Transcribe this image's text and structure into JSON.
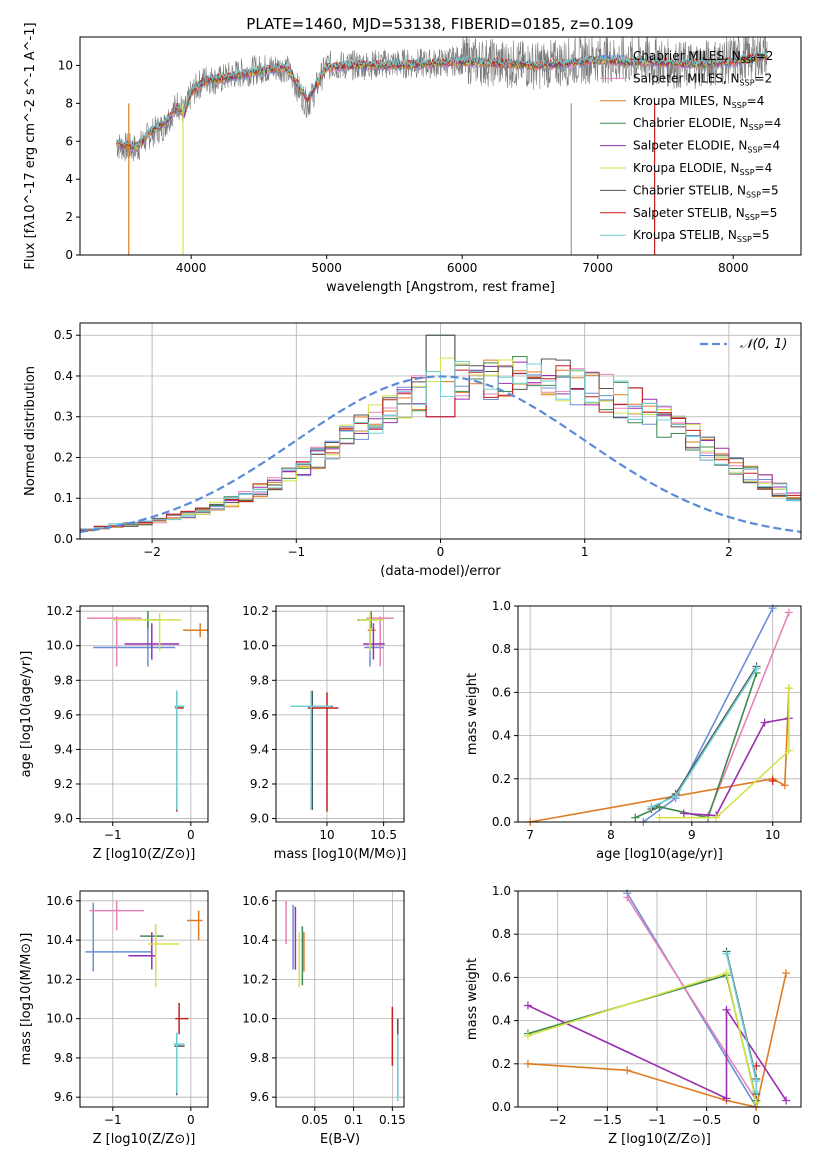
{
  "title": "PLATE=1460, MJD=53138, FIBERID=0185, z=0.109",
  "models": [
    {
      "name": "Chabrier MILES",
      "nssp": "2",
      "color": "#6a8fd8"
    },
    {
      "name": "Salpeter MILES",
      "nssp": "2",
      "color": "#e882b8"
    },
    {
      "name": "Kroupa MILES",
      "nssp": "4",
      "color": "#e07b22"
    },
    {
      "name": "Chabrier ELODIE",
      "nssp": "4",
      "color": "#3f8a4f"
    },
    {
      "name": "Salpeter ELODIE",
      "nssp": "4",
      "color": "#9a2fb0"
    },
    {
      "name": "Kroupa ELODIE",
      "nssp": "4",
      "color": "#d6e24a"
    },
    {
      "name": "Chabrier STELIB",
      "nssp": "5",
      "color": "#555555"
    },
    {
      "name": "Salpeter STELIB",
      "nssp": "5",
      "color": "#c41f1f"
    },
    {
      "name": "Kroupa STELIB",
      "nssp": "5",
      "color": "#6fd0d8"
    }
  ],
  "chart_data": [
    {
      "id": "spectrum",
      "type": "line",
      "xlabel": "wavelength [Angstrom, rest frame]",
      "ylabel": "Flux [f$_\\lambda$10$^{-17}$ erg cm$^{-2}$ s$^{-1}$ A$^{-1}$]",
      "xlim": [
        3180,
        8500
      ],
      "ylim": [
        0,
        11.5
      ],
      "xticks": [
        4000,
        5000,
        6000,
        7000,
        8000
      ],
      "yticks": [
        0,
        2,
        4,
        6,
        8,
        10
      ],
      "data_grey": {
        "x": [
          3450,
          3500,
          3600,
          3700,
          3800,
          3900,
          3950,
          4000,
          4100,
          4200,
          4300,
          4500,
          4700,
          4860,
          5000,
          5200,
          5500,
          5800,
          6000,
          6300,
          6560,
          6800,
          7000,
          7200,
          7400,
          7600,
          7800,
          8000,
          8250
        ],
        "y": [
          5.8,
          5.7,
          5.6,
          6.4,
          6.8,
          8.0,
          7.5,
          8.5,
          9.3,
          9.2,
          9.5,
          9.8,
          9.9,
          7.9,
          10.0,
          10.0,
          10.1,
          10.1,
          10.3,
          10.1,
          10.0,
          10.2,
          10.4,
          10.2,
          10.3,
          10.0,
          10.1,
          10.3,
          10.6
        ]
      },
      "model": {
        "x": [
          3450,
          3500,
          3600,
          3700,
          3800,
          3900,
          3950,
          4000,
          4100,
          4200,
          4300,
          4500,
          4700,
          4860,
          5000,
          5200,
          5500,
          5800,
          6000,
          6300,
          6560,
          6800,
          7000,
          7200,
          7400,
          7600,
          7800,
          8000,
          8250
        ],
        "y": [
          5.9,
          5.8,
          5.7,
          6.5,
          6.9,
          7.8,
          7.4,
          8.6,
          9.2,
          9.3,
          9.4,
          9.7,
          9.9,
          8.2,
          9.9,
          10.0,
          10.0,
          10.1,
          10.2,
          10.1,
          10.0,
          10.1,
          10.3,
          10.2,
          10.2,
          10.1,
          10.1,
          10.2,
          10.5
        ]
      }
    },
    {
      "id": "residuals",
      "type": "histogram",
      "xlabel": "(data-model)/error",
      "ylabel": "Normed distribution",
      "xlim": [
        -2.5,
        2.5
      ],
      "ylim": [
        0,
        0.53
      ],
      "xticks": [
        -2,
        -1,
        0,
        1,
        2
      ],
      "yticks": [
        0.0,
        0.1,
        0.2,
        0.3,
        0.4,
        0.5
      ],
      "legend": "$\\mathcal{N}(0,1)$",
      "bin_edges_start": -2.5,
      "bin_width": 0.1,
      "base_values": [
        0.022,
        0.028,
        0.033,
        0.036,
        0.04,
        0.046,
        0.054,
        0.06,
        0.069,
        0.08,
        0.092,
        0.105,
        0.12,
        0.138,
        0.16,
        0.18,
        0.2,
        0.225,
        0.25,
        0.27,
        0.295,
        0.32,
        0.34,
        0.36,
        0.375,
        0.39,
        0.395,
        0.39,
        0.385,
        0.4,
        0.405,
        0.4,
        0.395,
        0.39,
        0.38,
        0.37,
        0.36,
        0.345,
        0.33,
        0.31,
        0.29,
        0.27,
        0.25,
        0.225,
        0.2,
        0.18,
        0.16,
        0.14,
        0.12,
        0.1,
        0.085,
        0.07,
        0.06,
        0.05,
        0.045,
        0.04,
        0.036,
        0.032,
        0.03,
        0.028,
        0.026,
        0.025,
        0.024,
        0.023,
        0.022
      ],
      "spike_value": 0.5
    },
    {
      "id": "age_vs_Z",
      "type": "errorbar",
      "xlabel": "Z [log$_{10}$(Z/Z$_\\odot$)]",
      "ylabel": "age  [log$_{10}$(age/yr)]",
      "xlim": [
        -1.42,
        0.22
      ],
      "ylim": [
        8.98,
        10.23
      ],
      "xticks": [
        -1,
        0
      ],
      "yticks": [
        9.0,
        9.2,
        9.4,
        9.6,
        9.8,
        10.0,
        10.2
      ],
      "points": [
        {
          "model": 0,
          "x": -0.55,
          "xerr": [
            0.7,
            0.35
          ],
          "y": 9.99,
          "yerr": [
            0.11,
            0.17
          ]
        },
        {
          "model": 1,
          "x": -0.95,
          "xerr": [
            0.38,
            0.32
          ],
          "y": 10.16,
          "yerr": [
            0.28,
            0.01
          ]
        },
        {
          "model": 2,
          "x": 0.12,
          "xerr": [
            0.22,
            0.12
          ],
          "y": 10.09,
          "yerr": [
            0.04,
            0.04
          ]
        },
        {
          "model": 3,
          "x": -0.55,
          "xerr": [
            0.05,
            0.15
          ],
          "y": 10.15,
          "yerr": [
            0.05,
            0.05
          ]
        },
        {
          "model": 4,
          "x": -0.5,
          "xerr": [
            0.35,
            0.35
          ],
          "y": 10.01,
          "yerr": [
            0.09,
            0.12
          ]
        },
        {
          "model": 5,
          "x": -0.4,
          "xerr": [
            0.6,
            0.28
          ],
          "y": 10.15,
          "yerr": [
            0.18,
            0.04
          ]
        },
        {
          "model": 6,
          "x": -0.18,
          "xerr": [
            0.02,
            0.09
          ],
          "y": 9.65,
          "yerr": [
            0.6,
            0.09
          ]
        },
        {
          "model": 7,
          "x": -0.18,
          "xerr": [
            0.02,
            0.09
          ],
          "y": 9.64,
          "yerr": [
            0.6,
            0.09
          ]
        },
        {
          "model": 8,
          "x": -0.18,
          "xerr": [
            0.03,
            0.1
          ],
          "y": 9.65,
          "yerr": [
            0.6,
            0.09
          ]
        }
      ]
    },
    {
      "id": "age_vs_mass",
      "type": "errorbar",
      "xlabel": "mass [log$_{10}$(M/M$_\\odot$)]",
      "ylabel": "",
      "xlim": [
        9.55,
        10.68
      ],
      "ylim": [
        8.98,
        10.23
      ],
      "xticks": [
        10.0,
        10.5
      ],
      "yticks": [
        9.0,
        9.2,
        9.4,
        9.6,
        9.8,
        10.0,
        10.2
      ],
      "points": [
        {
          "model": 0,
          "x": 10.38,
          "xerr": [
            0.05,
            0.12
          ],
          "y": 9.99,
          "yerr": [
            0.11,
            0.17
          ]
        },
        {
          "model": 1,
          "x": 10.47,
          "xerr": [
            0.12,
            0.12
          ],
          "y": 10.16,
          "yerr": [
            0.28,
            0.01
          ]
        },
        {
          "model": 2,
          "x": 10.38,
          "xerr": [
            0.02,
            0.05
          ],
          "y": 10.09,
          "yerr": [
            0.04,
            0.04
          ]
        },
        {
          "model": 3,
          "x": 10.39,
          "xerr": [
            0.12,
            0.05
          ],
          "y": 10.15,
          "yerr": [
            0.05,
            0.05
          ]
        },
        {
          "model": 4,
          "x": 10.41,
          "xerr": [
            0.09,
            0.1
          ],
          "y": 10.01,
          "yerr": [
            0.09,
            0.12
          ]
        },
        {
          "model": 5,
          "x": 10.38,
          "xerr": [
            0.1,
            0.12
          ],
          "y": 10.15,
          "yerr": [
            0.18,
            0.04
          ]
        },
        {
          "model": 6,
          "x": 9.87,
          "xerr": [
            0.18,
            0.18
          ],
          "y": 9.65,
          "yerr": [
            0.6,
            0.09
          ]
        },
        {
          "model": 7,
          "x": 10.0,
          "xerr": [
            0.17,
            0.1
          ],
          "y": 9.64,
          "yerr": [
            0.6,
            0.09
          ]
        },
        {
          "model": 8,
          "x": 9.86,
          "xerr": [
            0.18,
            0.18
          ],
          "y": 9.65,
          "yerr": [
            0.6,
            0.09
          ]
        }
      ]
    },
    {
      "id": "weight_vs_age",
      "type": "line",
      "xlabel": "age  [log$_{10}$(age/yr)]",
      "ylabel": "mass weight",
      "xlim": [
        6.85,
        10.35
      ],
      "ylim": [
        0.0,
        1.0
      ],
      "xticks": [
        7,
        8,
        9,
        10
      ],
      "yticks": [
        0.0,
        0.2,
        0.4,
        0.6,
        0.8,
        1.0
      ],
      "series": [
        {
          "model": 0,
          "x": [
            8.4,
            8.8,
            10.0
          ],
          "y": [
            0.0,
            0.11,
            0.99
          ]
        },
        {
          "model": 1,
          "x": [
            9.2,
            10.2
          ],
          "y": [
            0.03,
            0.97
          ]
        },
        {
          "model": 2,
          "x": [
            7.0,
            10.0,
            10.15,
            10.2
          ],
          "y": [
            0.0,
            0.2,
            0.17,
            0.62
          ]
        },
        {
          "model": 3,
          "x": [
            8.3,
            8.6,
            9.2,
            9.8
          ],
          "y": [
            0.02,
            0.07,
            0.02,
            0.69
          ]
        },
        {
          "model": 4,
          "x": [
            8.9,
            9.3,
            9.9,
            10.2
          ],
          "y": [
            0.04,
            0.03,
            0.46,
            0.48
          ]
        },
        {
          "model": 5,
          "x": [
            8.6,
            9.3,
            10.2,
            10.2
          ],
          "y": [
            0.02,
            0.02,
            0.33,
            0.62
          ]
        },
        {
          "model": 6,
          "x": [
            8.5,
            8.8,
            9.8
          ],
          "y": [
            0.06,
            0.13,
            0.72
          ]
        },
        {
          "model": 7,
          "x": [
            10.0
          ],
          "y": [
            0.19
          ]
        },
        {
          "model": 8,
          "x": [
            8.5,
            8.8,
            9.8
          ],
          "y": [
            0.07,
            0.12,
            0.71
          ]
        }
      ]
    },
    {
      "id": "mass_vs_Z",
      "type": "errorbar",
      "xlabel": "Z [log$_{10}$(Z/Z$_\\odot$)]",
      "ylabel": "mass [log$_{10}$(M/M$_\\odot$)]",
      "xlim": [
        -1.42,
        0.22
      ],
      "ylim": [
        9.55,
        10.65
      ],
      "xticks": [
        -1,
        0
      ],
      "yticks": [
        9.6,
        9.8,
        10.0,
        10.2,
        10.4,
        10.6
      ],
      "points": [
        {
          "model": 0,
          "x": -1.25,
          "xerr": [
            0.1,
            0.75
          ],
          "y": 10.34,
          "yerr": [
            0.1,
            0.25
          ]
        },
        {
          "model": 1,
          "x": -0.95,
          "xerr": [
            0.35,
            0.35
          ],
          "y": 10.55,
          "yerr": [
            0.1,
            0.05
          ]
        },
        {
          "model": 2,
          "x": 0.1,
          "xerr": [
            0.15,
            0.05
          ],
          "y": 10.5,
          "yerr": [
            0.1,
            0.05
          ]
        },
        {
          "model": 3,
          "x": -0.45,
          "xerr": [
            0.2,
            0.1
          ],
          "y": 10.42,
          "yerr": [
            0.13,
            0.06
          ]
        },
        {
          "model": 4,
          "x": -0.5,
          "xerr": [
            0.3,
            0.05
          ],
          "y": 10.32,
          "yerr": [
            0.07,
            0.12
          ]
        },
        {
          "model": 5,
          "x": -0.45,
          "xerr": [
            0.1,
            0.3
          ],
          "y": 10.38,
          "yerr": [
            0.22,
            0.1
          ]
        },
        {
          "model": 6,
          "x": -0.18,
          "xerr": [
            0.03,
            0.1
          ],
          "y": 9.86,
          "yerr": [
            0.25,
            0.06
          ]
        },
        {
          "model": 7,
          "x": -0.15,
          "xerr": [
            0.05,
            0.12
          ],
          "y": 10.0,
          "yerr": [
            0.08,
            0.08
          ]
        },
        {
          "model": 8,
          "x": -0.18,
          "xerr": [
            0.04,
            0.1
          ],
          "y": 9.87,
          "yerr": [
            0.25,
            0.06
          ]
        }
      ]
    },
    {
      "id": "mass_vs_ebv",
      "type": "errorbar",
      "xlabel": "E(B-V)",
      "ylabel": "",
      "xlim": [
        0.0,
        0.165
      ],
      "ylim": [
        9.55,
        10.65
      ],
      "xticks": [
        0.05,
        0.1,
        0.15
      ],
      "yticks": [
        9.6,
        9.8,
        10.0,
        10.2,
        10.4,
        10.6
      ],
      "points": [
        {
          "model": 0,
          "x": 0.022,
          "xerr": [
            0.0,
            0.0
          ],
          "y": 10.4,
          "yerr": [
            0.15,
            0.18
          ]
        },
        {
          "model": 1,
          "x": 0.013,
          "xerr": [
            0.0,
            0.0
          ],
          "y": 10.5,
          "yerr": [
            0.12,
            0.1
          ]
        },
        {
          "model": 2,
          "x": 0.036,
          "xerr": [
            0.0,
            0.0
          ],
          "y": 10.36,
          "yerr": [
            0.12,
            0.08
          ]
        },
        {
          "model": 3,
          "x": 0.034,
          "xerr": [
            0.0,
            0.0
          ],
          "y": 10.32,
          "yerr": [
            0.15,
            0.15
          ]
        },
        {
          "model": 4,
          "x": 0.025,
          "xerr": [
            0.0,
            0.0
          ],
          "y": 10.45,
          "yerr": [
            0.2,
            0.12
          ]
        },
        {
          "model": 5,
          "x": 0.03,
          "xerr": [
            0.0,
            0.0
          ],
          "y": 10.3,
          "yerr": [
            0.14,
            0.14
          ]
        },
        {
          "model": 6,
          "x": 0.157,
          "xerr": [
            0.0,
            0.0
          ],
          "y": 9.8,
          "yerr": [
            0.2,
            0.2
          ]
        },
        {
          "model": 7,
          "x": 0.15,
          "xerr": [
            0.0,
            0.0
          ],
          "y": 9.92,
          "yerr": [
            0.16,
            0.14
          ]
        },
        {
          "model": 8,
          "x": 0.157,
          "xerr": [
            0.0,
            0.0
          ],
          "y": 9.74,
          "yerr": [
            0.16,
            0.18
          ]
        }
      ]
    },
    {
      "id": "weight_vs_Z",
      "type": "line",
      "xlabel": "Z [log$_{10}$(Z/Z$_\\odot$)]",
      "ylabel": "mass weight",
      "xlim": [
        -2.4,
        0.45
      ],
      "ylim": [
        0.0,
        1.0
      ],
      "xticks": [
        -2.0,
        -1.5,
        -1.0,
        -0.5,
        0.0
      ],
      "yticks": [
        0.0,
        0.2,
        0.4,
        0.6,
        0.8,
        1.0
      ],
      "series": [
        {
          "model": 0,
          "x": [
            -1.3,
            0.0
          ],
          "y": [
            0.99,
            0.0
          ]
        },
        {
          "model": 1,
          "x": [
            -1.3,
            0.0
          ],
          "y": [
            0.97,
            0.03
          ]
        },
        {
          "model": 2,
          "x": [
            -2.3,
            -1.3,
            -0.3,
            0.0,
            0.3
          ],
          "y": [
            0.2,
            0.17,
            0.03,
            0.0,
            0.62
          ]
        },
        {
          "model": 3,
          "x": [
            -2.3,
            -0.3,
            0.0
          ],
          "y": [
            0.34,
            0.61,
            0.03
          ]
        },
        {
          "model": 4,
          "x": [
            -2.3,
            -0.3,
            -0.3,
            0.3
          ],
          "y": [
            0.47,
            0.04,
            0.45,
            0.03
          ]
        },
        {
          "model": 5,
          "x": [
            -2.3,
            -0.3,
            0.0
          ],
          "y": [
            0.33,
            0.62,
            0.02
          ]
        },
        {
          "model": 6,
          "x": [
            -0.3,
            0.0,
            0.0
          ],
          "y": [
            0.72,
            0.13,
            0.06
          ]
        },
        {
          "model": 7,
          "x": [
            0.0
          ],
          "y": [
            0.19
          ]
        },
        {
          "model": 8,
          "x": [
            -0.3,
            0.0,
            0.0
          ],
          "y": [
            0.71,
            0.12,
            0.07
          ]
        }
      ]
    }
  ]
}
